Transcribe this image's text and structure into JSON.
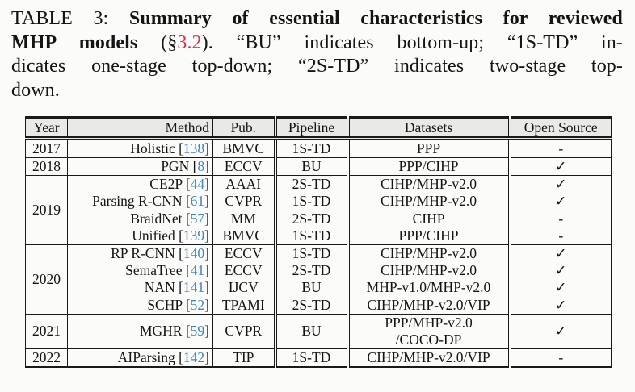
{
  "caption": {
    "lines": [
      {
        "segments": [
          {
            "text": "TABLE 3: ",
            "style": "normal"
          },
          {
            "text": "Summary of essential characteristics for reviewed",
            "style": "bold"
          }
        ]
      },
      {
        "segments": [
          {
            "text": "MHP models",
            "style": "bold"
          },
          {
            "text": " (§",
            "style": "normal"
          },
          {
            "text": "3.2",
            "style": "red"
          },
          {
            "text": "). “BU” indicates bottom-up; “1S-TD” in-",
            "style": "normal"
          }
        ]
      },
      {
        "segments": [
          {
            "text": "dicates one-stage top-down; “2S-TD” indicates two-stage top-",
            "style": "normal"
          }
        ]
      },
      {
        "segments": [
          {
            "text": "down.",
            "style": "normal"
          }
        ]
      }
    ]
  },
  "table": {
    "columns": [
      "Year",
      "Method",
      "Pub.",
      "Pipeline",
      "Datasets",
      "Open Source"
    ],
    "groups": [
      {
        "year": "2017",
        "rows": [
          {
            "method": "Holistic",
            "cite": "138",
            "pub": "BMVC",
            "pipeline": "1S-TD",
            "datasets": [
              "PPP"
            ],
            "open_source": "-"
          }
        ]
      },
      {
        "year": "2018",
        "rows": [
          {
            "method": "PGN",
            "cite": "8",
            "pub": "ECCV",
            "pipeline": "BU",
            "datasets": [
              "PPP/CIHP"
            ],
            "open_source": "✓"
          }
        ]
      },
      {
        "year": "2019",
        "rows": [
          {
            "method": "CE2P",
            "cite": "44",
            "pub": "AAAI",
            "pipeline": "2S-TD",
            "datasets": [
              "CIHP/MHP-v2.0"
            ],
            "open_source": "✓"
          },
          {
            "method": "Parsing R-CNN",
            "cite": "61",
            "pub": "CVPR",
            "pipeline": "1S-TD",
            "datasets": [
              "CIHP/MHP-v2.0"
            ],
            "open_source": "✓"
          },
          {
            "method": "BraidNet",
            "cite": "57",
            "pub": "MM",
            "pipeline": "2S-TD",
            "datasets": [
              "CIHP"
            ],
            "open_source": "-"
          },
          {
            "method": "Unified",
            "cite": "139",
            "pub": "BMVC",
            "pipeline": "1S-TD",
            "datasets": [
              "PPP/CIHP"
            ],
            "open_source": "-"
          }
        ]
      },
      {
        "year": "2020",
        "rows": [
          {
            "method": "RP R-CNN",
            "cite": "140",
            "pub": "ECCV",
            "pipeline": "1S-TD",
            "datasets": [
              "CIHP/MHP-v2.0"
            ],
            "open_source": "✓"
          },
          {
            "method": "SemaTree",
            "cite": "41",
            "pub": "ECCV",
            "pipeline": "2S-TD",
            "datasets": [
              "CIHP/MHP-v2.0"
            ],
            "open_source": "✓"
          },
          {
            "method": "NAN",
            "cite": "141",
            "pub": "IJCV",
            "pipeline": "BU",
            "datasets": [
              "MHP-v1.0/MHP-v2.0"
            ],
            "open_source": "✓"
          },
          {
            "method": "SCHP",
            "cite": "52",
            "pub": "TPAMI",
            "pipeline": "2S-TD",
            "datasets": [
              "CIHP/MHP-v2.0/VIP"
            ],
            "open_source": "✓"
          }
        ]
      },
      {
        "year": "2021",
        "rows": [
          {
            "method": "MGHR",
            "cite": "59",
            "pub": "CVPR",
            "pipeline": "BU",
            "datasets": [
              "PPP/MHP-v2.0",
              "/COCO-DP"
            ],
            "open_source": "✓"
          }
        ]
      },
      {
        "year": "2022",
        "rows": [
          {
            "method": "AIParsing",
            "cite": "142",
            "pub": "TIP",
            "pipeline": "1S-TD",
            "datasets": [
              "CIHP/MHP-v2.0/VIP"
            ],
            "open_source": "-"
          }
        ]
      }
    ]
  },
  "colors": {
    "citation_link": "#3d85c6",
    "section_ref": "#e0314b",
    "header_bg": "#e9e9e7",
    "border": "#1a1a1a",
    "page_bg": "#fbfbf9"
  }
}
